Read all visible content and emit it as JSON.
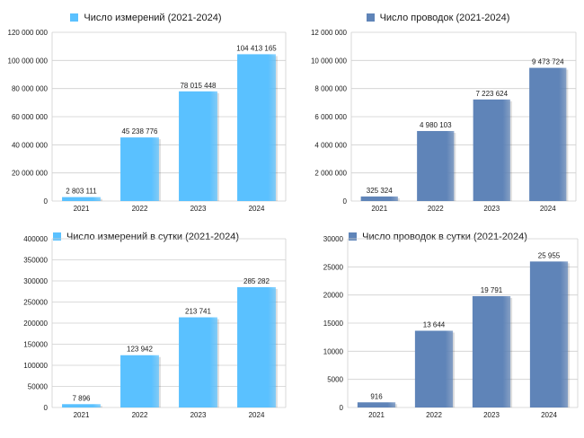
{
  "colors": {
    "light": "#5ac1ff",
    "dark": "#5f84b8",
    "grid": "#cfcfcf"
  },
  "chart_data": [
    {
      "type": "bar",
      "title": "",
      "categories": [
        "2021",
        "2022",
        "2023",
        "2024"
      ],
      "series": [
        {
          "name": "Число измерений (2021-2024)",
          "values": [
            2803111,
            45238776,
            78015448,
            104413165
          ]
        }
      ],
      "value_labels": [
        "2 803 111",
        "45 238 776",
        "78 015 448",
        "104 413 165"
      ],
      "ylim": [
        0,
        120000000
      ],
      "yticks": [
        0,
        20000000,
        40000000,
        60000000,
        80000000,
        100000000,
        120000000
      ],
      "ytick_labels": [
        "0",
        "20 000 000",
        "40 000 000",
        "60 000 000",
        "80 000 000",
        "100 000 000",
        "120 000 000"
      ],
      "color": "light",
      "grid": true,
      "legend": "top-center"
    },
    {
      "type": "bar",
      "title": "",
      "categories": [
        "2021",
        "2022",
        "2023",
        "2024"
      ],
      "series": [
        {
          "name": "Число проводок (2021-2024)",
          "values": [
            325324,
            4980103,
            7223624,
            9473724
          ]
        }
      ],
      "value_labels": [
        "325 324",
        "4 980 103",
        "7 223 624",
        "9 473 724"
      ],
      "ylim": [
        0,
        12000000
      ],
      "yticks": [
        0,
        2000000,
        4000000,
        6000000,
        8000000,
        10000000,
        12000000
      ],
      "ytick_labels": [
        "0",
        "2 000 000",
        "4 000 000",
        "6 000 000",
        "8 000 000",
        "10 000 000",
        "12 000 000"
      ],
      "color": "dark",
      "grid": true,
      "legend": "top-center"
    },
    {
      "type": "bar",
      "title": "",
      "categories": [
        "2021",
        "2022",
        "2023",
        "2024"
      ],
      "series": [
        {
          "name": "Число измерений в сутки (2021-2024)",
          "values": [
            7896,
            123942,
            213741,
            285282
          ]
        }
      ],
      "value_labels": [
        "7 896",
        "123 942",
        "213 741",
        "285 282"
      ],
      "ylim": [
        0,
        400000
      ],
      "yticks": [
        0,
        50000,
        100000,
        150000,
        200000,
        250000,
        300000,
        350000,
        400000
      ],
      "ytick_labels": [
        "0",
        "50000",
        "100000",
        "150000",
        "200000",
        "250000",
        "300000",
        "350000",
        "400000"
      ],
      "color": "light",
      "grid": true,
      "legend": "top-center"
    },
    {
      "type": "bar",
      "title": "",
      "categories": [
        "2021",
        "2022",
        "2023",
        "2024"
      ],
      "series": [
        {
          "name": "Число проводок в сутки (2021-2024)",
          "values": [
            916,
            13644,
            19791,
            25955
          ]
        }
      ],
      "value_labels": [
        "916",
        "13 644",
        "19 791",
        "25 955"
      ],
      "ylim": [
        0,
        30000
      ],
      "yticks": [
        0,
        5000,
        10000,
        15000,
        20000,
        25000,
        30000
      ],
      "ytick_labels": [
        "0",
        "5000",
        "10000",
        "15000",
        "20000",
        "25000",
        "30000"
      ],
      "color": "dark",
      "grid": true,
      "legend": "top-center"
    }
  ]
}
